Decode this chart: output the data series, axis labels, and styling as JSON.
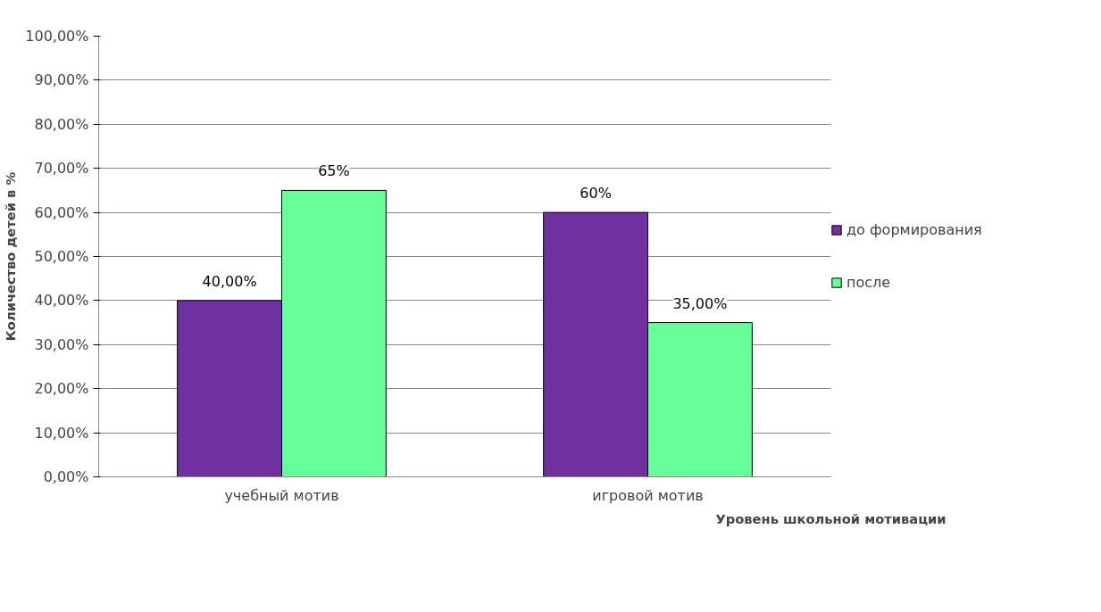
{
  "chart_data": {
    "type": "bar",
    "xlabel": "Уровень школьной мотивации",
    "ylabel": "Количество детей в %",
    "categories": [
      "учебный мотив",
      "игровой мотив"
    ],
    "series": [
      {
        "name": "до формирования",
        "color": "#7030a0",
        "values": [
          40,
          60
        ],
        "value_labels": [
          "40,00%",
          "60%"
        ]
      },
      {
        "name": "после",
        "color": "#66ff99",
        "values": [
          65,
          35
        ],
        "value_labels": [
          "65%",
          "35,00%"
        ]
      }
    ],
    "ylim": [
      0,
      100
    ],
    "yticks": [
      {
        "value": 0,
        "label": "0,00%"
      },
      {
        "value": 10,
        "label": "10,00%"
      },
      {
        "value": 20,
        "label": "20,00%"
      },
      {
        "value": 30,
        "label": "30,00%"
      },
      {
        "value": 40,
        "label": "40,00%"
      },
      {
        "value": 50,
        "label": "50,00%"
      },
      {
        "value": 60,
        "label": "60,00%"
      },
      {
        "value": 70,
        "label": "70,00%"
      },
      {
        "value": 80,
        "label": "80,00%"
      },
      {
        "value": 90,
        "label": "90,00%"
      },
      {
        "value": 100,
        "label": "100,00%"
      }
    ],
    "grid": "y",
    "legend": "right"
  }
}
